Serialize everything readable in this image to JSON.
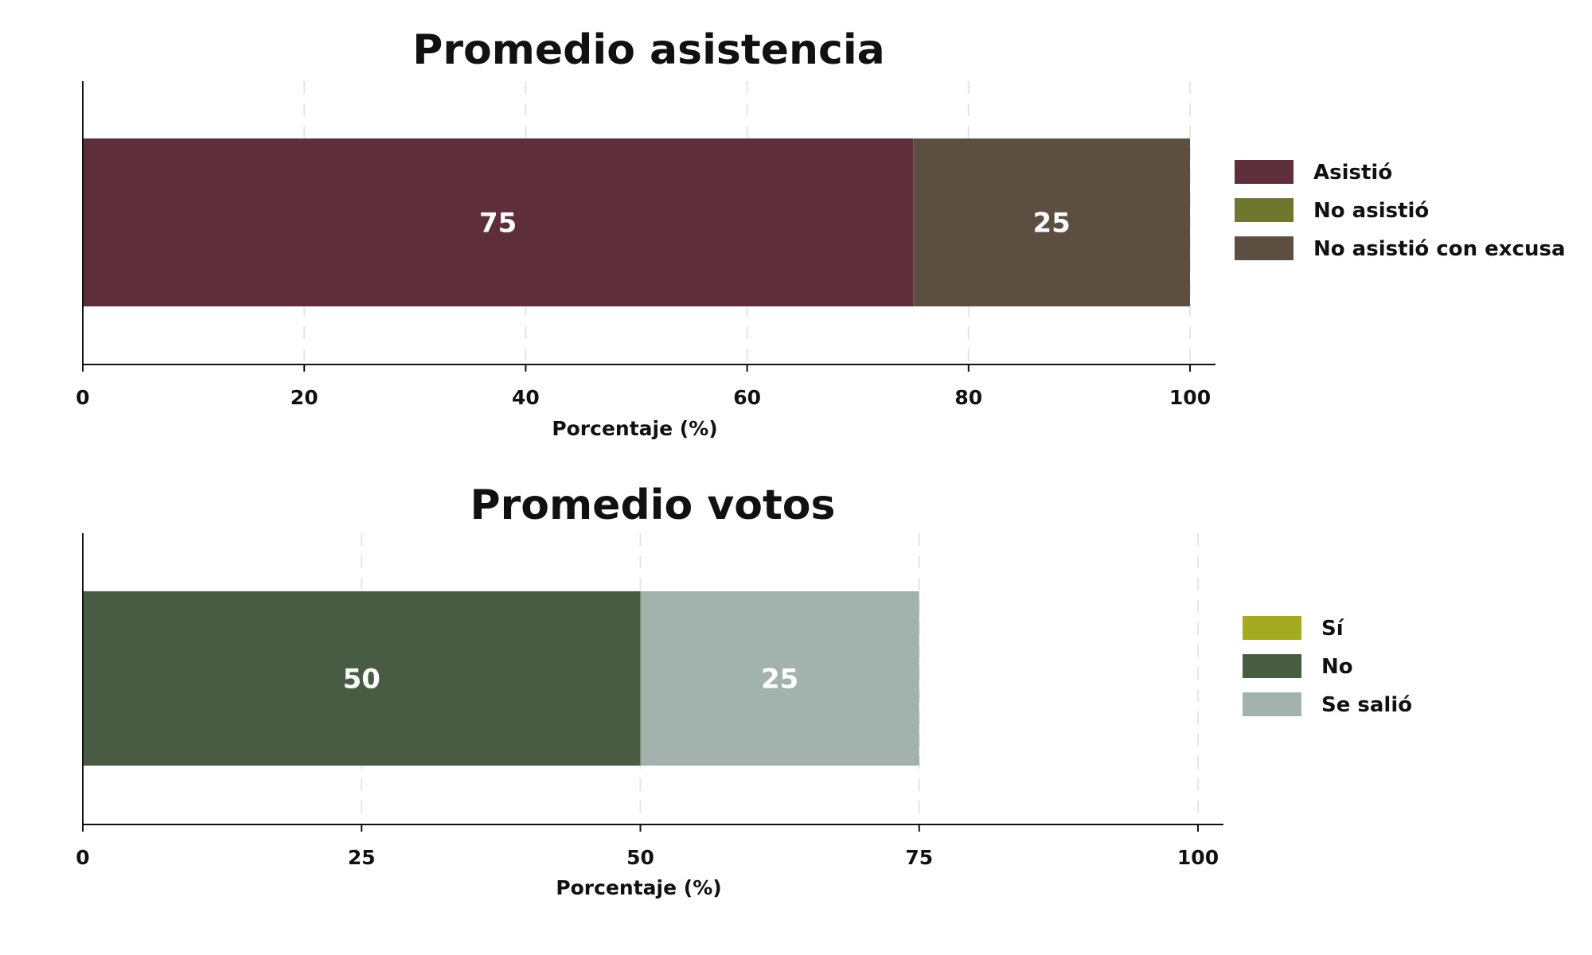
{
  "chart_data": [
    {
      "type": "bar",
      "orientation": "horizontal",
      "stacked": true,
      "title": "Promedio asistencia",
      "xlabel": "Porcentaje (%)",
      "ylabel": "",
      "xlim": [
        0,
        100
      ],
      "xticks": [
        0,
        20,
        40,
        60,
        80,
        100
      ],
      "grid": true,
      "legend_position": "right",
      "series": [
        {
          "name": "Asistió",
          "value": 75,
          "color": "#5e2e3b"
        },
        {
          "name": "No asistió",
          "value": 0,
          "color": "#6f772f"
        },
        {
          "name": "No asistió con excusa",
          "value": 25,
          "color": "#5c4e40"
        }
      ]
    },
    {
      "type": "bar",
      "orientation": "horizontal",
      "stacked": true,
      "title": "Promedio votos",
      "xlabel": "Porcentaje (%)",
      "ylabel": "",
      "xlim": [
        0,
        100
      ],
      "xticks": [
        0,
        25,
        50,
        75,
        100
      ],
      "grid": true,
      "legend_position": "right",
      "series": [
        {
          "name": "Sí",
          "value": 0,
          "color": "#a2ac1e"
        },
        {
          "name": "No",
          "value": 50,
          "color": "#475c43"
        },
        {
          "name": "Se salió",
          "value": 25,
          "color": "#a2b3ad"
        }
      ]
    }
  ]
}
